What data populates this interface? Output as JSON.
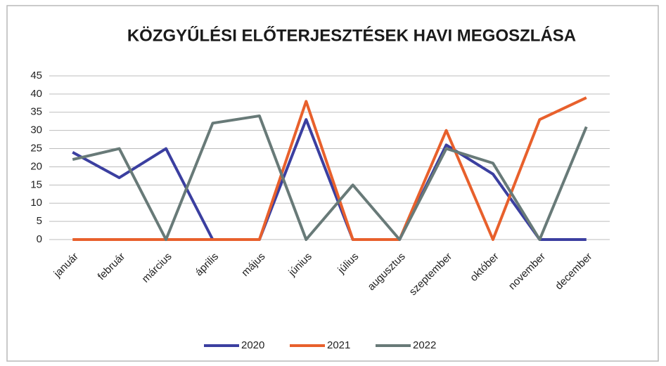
{
  "chart_data": {
    "type": "line",
    "title": "KÖZGYŰLÉSI ELŐTERJESZTÉSEK HAVI MEGOSZLÁSA",
    "categories": [
      "január",
      "február",
      "március",
      "április",
      "május",
      "június",
      "július",
      "augusztus",
      "szeptember",
      "október",
      "november",
      "december"
    ],
    "series": [
      {
        "name": "2020",
        "color": "#3b3fa0",
        "values": [
          24,
          17,
          25,
          0,
          0,
          33,
          0,
          0,
          26,
          18,
          0,
          0
        ]
      },
      {
        "name": "2021",
        "color": "#e8602c",
        "values": [
          0,
          0,
          0,
          0,
          0,
          38,
          0,
          0,
          30,
          0,
          33,
          39
        ]
      },
      {
        "name": "2022",
        "color": "#687a78",
        "values": [
          22,
          25,
          0,
          32,
          34,
          0,
          15,
          0,
          25,
          21,
          0,
          31
        ]
      }
    ],
    "ylim": [
      0,
      45
    ],
    "yticks": [
      0,
      5,
      10,
      15,
      20,
      25,
      30,
      35,
      40,
      45
    ],
    "grid": true,
    "legend": "bottom"
  }
}
